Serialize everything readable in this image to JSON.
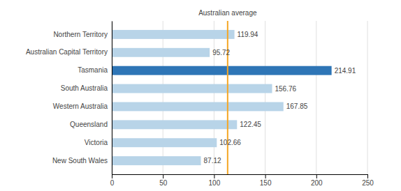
{
  "chart_data": {
    "type": "bar",
    "orientation": "horizontal",
    "categories": [
      "New South Wales",
      "Victoria",
      "Queensland",
      "Western Australia",
      "South Australia",
      "Tasmania",
      "Australian Capital Territory",
      "Northern Territory"
    ],
    "values": [
      87.12,
      102.66,
      122.45,
      167.85,
      156.76,
      214.91,
      95.72,
      119.94
    ],
    "colors": [
      "#b8d4e8",
      "#b8d4e8",
      "#b8d4e8",
      "#b8d4e8",
      "#b8d4e8",
      "#2e75b6",
      "#b8d4e8",
      "#b8d4e8"
    ],
    "xlim": [
      0,
      250
    ],
    "xticks": [
      0,
      50,
      100,
      150,
      200,
      250
    ],
    "grid": true,
    "data_labels": true,
    "reference_line": {
      "value": 113.27,
      "label": "Australian average",
      "color": "#f5a623"
    }
  }
}
